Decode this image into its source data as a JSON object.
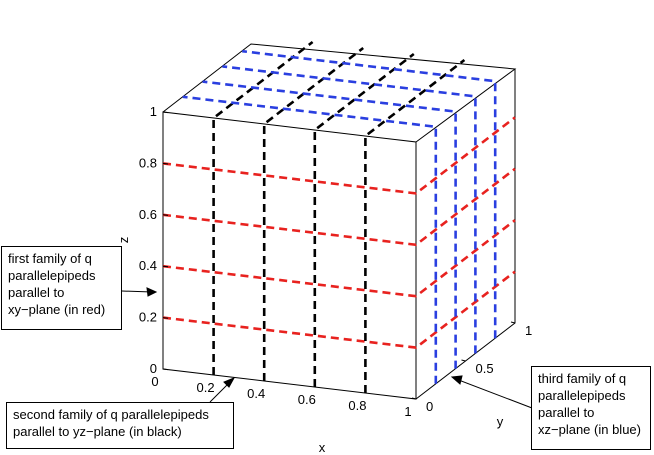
{
  "axes": {
    "x": {
      "label": "x",
      "ticks": [
        "0",
        "0.2",
        "0.4",
        "0.6",
        "0.8",
        "1"
      ]
    },
    "y": {
      "label": "y",
      "ticks": [
        "0",
        "0.5",
        "1"
      ]
    },
    "z": {
      "label": "z",
      "ticks": [
        "0",
        "0.2",
        "0.4",
        "0.6",
        "0.8",
        "1"
      ]
    }
  },
  "families": [
    {
      "color": "#e8221f",
      "planes_at": [
        0.2,
        0.4,
        0.6,
        0.8
      ],
      "orientation": "xy"
    },
    {
      "color": "#000000",
      "planes_at": [
        0.2,
        0.4,
        0.6,
        0.8
      ],
      "orientation": "yz"
    },
    {
      "color": "#2a3fe0",
      "planes_at": [
        0.2,
        0.4,
        0.6,
        0.8
      ],
      "orientation": "xz"
    }
  ],
  "annotations": {
    "first": [
      "first family of q",
      "parallelepipeds",
      "parallel to",
      "xy−plane (in red)"
    ],
    "second": [
      "second family of q parallelepipeds",
      "parallel to yz−plane (in black)"
    ],
    "third": [
      "third family of q",
      "parallelepipeds",
      "parallel to",
      "xz−plane (in blue)"
    ]
  }
}
